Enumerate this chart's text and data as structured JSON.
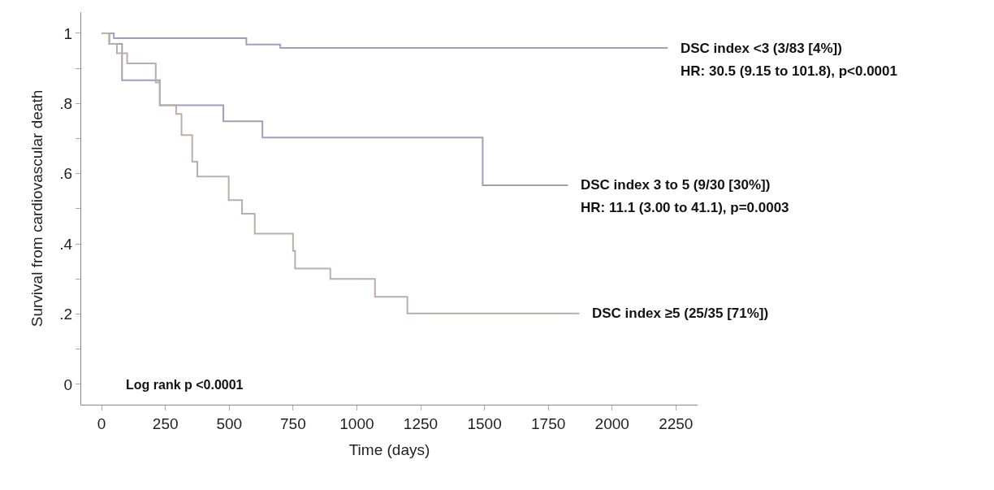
{
  "chart_data": {
    "type": "step",
    "xlabel": "Time (days)",
    "ylabel": "Survival from cardiovascular death",
    "xlim": [
      -80,
      2335
    ],
    "ylim": [
      -0.058,
      1.06
    ],
    "xticks": [
      0,
      250,
      500,
      750,
      1000,
      1250,
      1500,
      1750,
      2000,
      2250
    ],
    "yticks": [
      {
        "value": 0,
        "label": "0"
      },
      {
        "value": 0.1,
        "label": null
      },
      {
        "value": 0.2,
        "label": ".2"
      },
      {
        "value": 0.3,
        "label": null
      },
      {
        "value": 0.4,
        "label": ".4"
      },
      {
        "value": 0.5,
        "label": null
      },
      {
        "value": 0.6,
        "label": ".6"
      },
      {
        "value": 0.7,
        "label": null
      },
      {
        "value": 0.8,
        "label": ".8"
      },
      {
        "value": 0.9,
        "label": null
      },
      {
        "value": 1,
        "label": "1"
      }
    ],
    "legend": false,
    "marker": "none",
    "line_style": "solid",
    "series": [
      {
        "name": "DSC index <3 (3/83 [4%])",
        "color": "#a69cbc",
        "x": [
          0,
          48,
          567,
          700,
          2218
        ],
        "values": [
          1,
          0.986,
          0.968,
          0.958,
          0.958
        ]
      },
      {
        "name": "DSC index 3 to 5 (9/30 [30%])",
        "color": "#a69cbc",
        "x": [
          0,
          30,
          80,
          228,
          477,
          630,
          1493,
          1827
        ],
        "values": [
          1,
          0.97,
          0.866,
          0.795,
          0.749,
          0.703,
          0.567,
          0.567
        ]
      },
      {
        "name": "DSC index ≥5 (25/35 [71%])",
        "color": "#bcaea8",
        "x": [
          0,
          30,
          60,
          100,
          212,
          228,
          292,
          313,
          355,
          375,
          498,
          550,
          600,
          750,
          758,
          766,
          896,
          1071,
          1198,
          1872
        ],
        "values": [
          1,
          0.97,
          0.943,
          0.914,
          0.86,
          0.795,
          0.77,
          0.71,
          0.634,
          0.592,
          0.525,
          0.486,
          0.429,
          0.38,
          0.33,
          0.33,
          0.3,
          0.249,
          0.202,
          0.202
        ]
      }
    ],
    "annotations": [
      "HR: 30.5 (9.15 to 101.8), p<0.0001",
      "HR: 11.1 (3.00 to 41.1), p=0.0003",
      "Log rank p <0.0001"
    ]
  }
}
